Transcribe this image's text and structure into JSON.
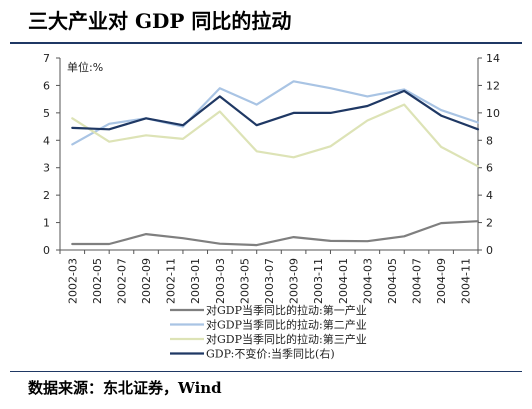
{
  "title": "三大产业对 GDP 同比的拉动",
  "source": "数据来源：东北证券，Wind",
  "chart_data": {
    "type": "line",
    "unit_label": "单位:%",
    "categories": [
      "2002-03",
      "2002-05",
      "2002-07",
      "2002-09",
      "2002-11",
      "2003-01",
      "2003-03",
      "2003-05",
      "2003-07",
      "2003-09",
      "2003-11",
      "2004-01",
      "2004-03",
      "2004-05",
      "2004-07",
      "2004-09",
      "2004-11"
    ],
    "x_tick_labels": [
      "2002-03",
      "2002-05",
      "2002-07",
      "2002-09",
      "2002-11",
      "2003-01",
      "2003-03",
      "2003-05",
      "2003-07",
      "2003-09",
      "2003-11",
      "2004-01",
      "2004-03",
      "2004-05",
      "2004-07",
      "2004-09",
      "2004-11"
    ],
    "x": [
      "2002-03",
      "2002-06",
      "2002-09",
      "2002-12",
      "2003-03",
      "2003-06",
      "2003-09",
      "2003-12",
      "2004-03",
      "2004-06",
      "2004-09",
      "2004-12"
    ],
    "y_left_ticks": [
      "0",
      "1",
      "2",
      "3",
      "4",
      "5",
      "6",
      "7"
    ],
    "y_right_ticks": [
      "0",
      "2",
      "4",
      "6",
      "8",
      "10",
      "12",
      "14"
    ],
    "ylim_left": [
      0,
      7
    ],
    "ylim_right": [
      0,
      14
    ],
    "grid": false,
    "legend_position": "bottom",
    "series": [
      {
        "name": "对GDP当季同比的拉动:第一产业",
        "axis": "left",
        "color": "#7f7f7f",
        "values": [
          0.22,
          0.22,
          0.58,
          0.43,
          0.23,
          0.18,
          0.47,
          0.33,
          0.32,
          0.5,
          0.98,
          1.05
        ]
      },
      {
        "name": "对GDP当季同比的拉动:第二产业",
        "axis": "left",
        "color": "#a9c4e4",
        "values": [
          3.85,
          4.6,
          4.8,
          4.5,
          5.9,
          5.3,
          6.15,
          5.9,
          5.6,
          5.85,
          5.1,
          4.65
        ]
      },
      {
        "name": "对GDP当季同比的拉动:第三产业",
        "axis": "left",
        "color": "#dde3b6",
        "values": [
          4.8,
          3.95,
          4.18,
          4.05,
          5.05,
          3.6,
          3.38,
          3.78,
          4.72,
          5.3,
          3.76,
          3.05
        ]
      },
      {
        "name": "GDP:不变价:当季同比(右)",
        "axis": "right",
        "color": "#1f3864",
        "values": [
          8.9,
          8.8,
          9.6,
          9.1,
          11.2,
          9.1,
          10.0,
          10.0,
          10.5,
          11.6,
          9.8,
          8.8
        ]
      }
    ]
  }
}
